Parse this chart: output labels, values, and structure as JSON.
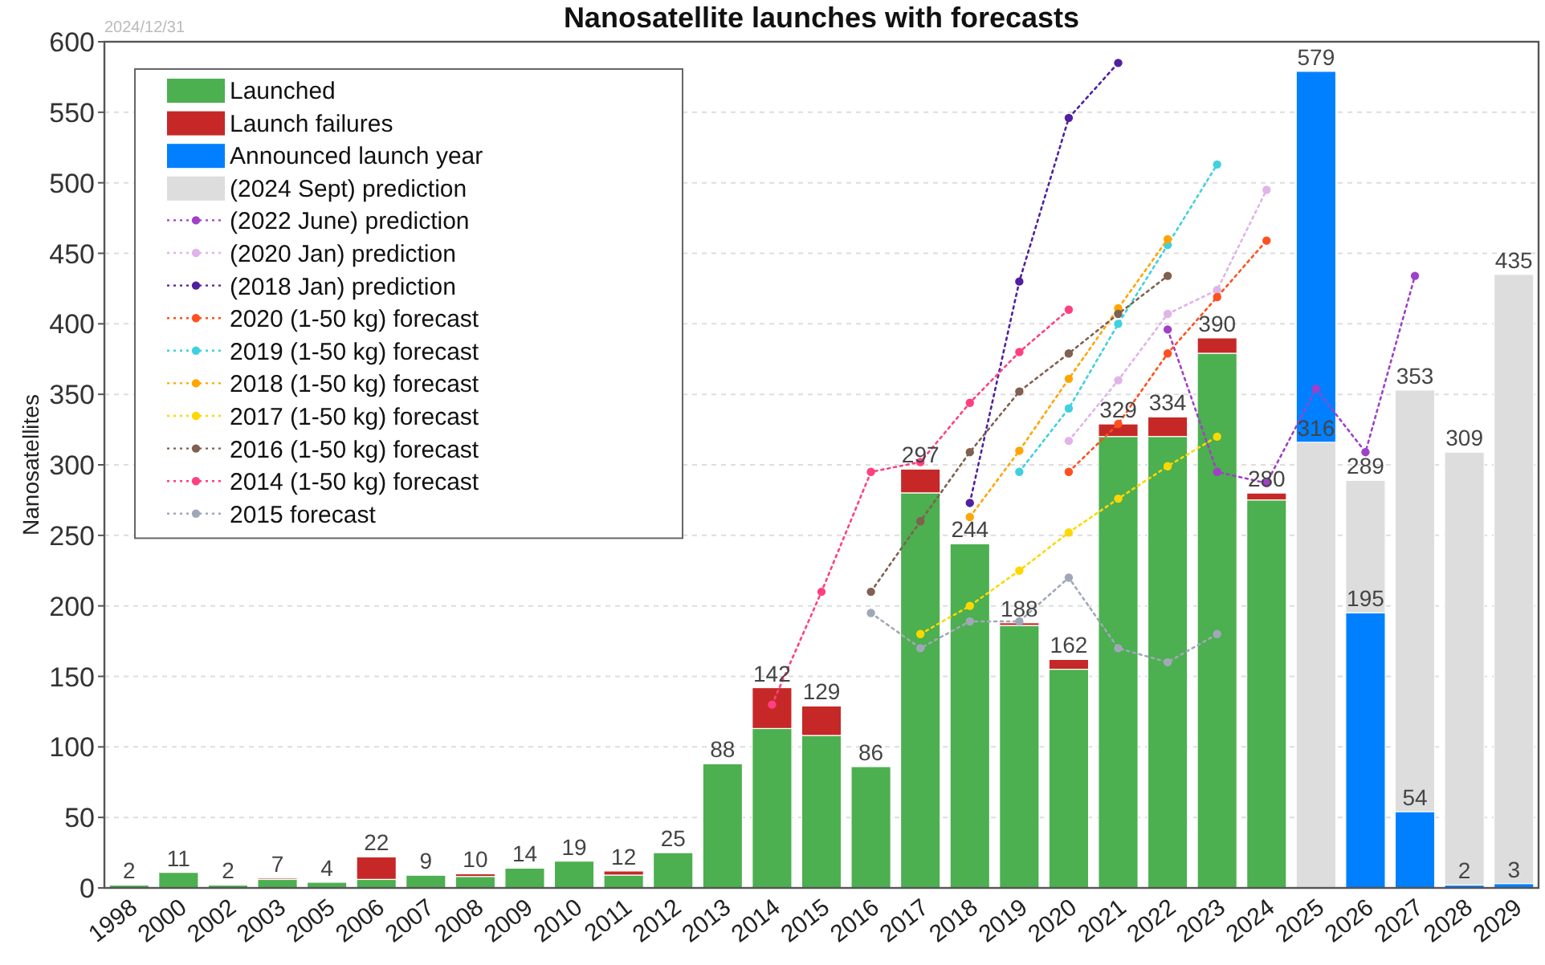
{
  "chart_data": {
    "type": "bar",
    "title": "Nanosatellite launches with forecasts",
    "ylabel": "Nanosatellites",
    "annotations": [
      "2024/12/31"
    ],
    "categories": [
      "1998",
      "2000",
      "2002",
      "2003",
      "2005",
      "2006",
      "2007",
      "2008",
      "2009",
      "2010",
      "2011",
      "2012",
      "2013",
      "2014",
      "2015",
      "2016",
      "2017",
      "2018",
      "2019",
      "2020",
      "2021",
      "2022",
      "2023",
      "2024",
      "2025",
      "2026",
      "2027",
      "2028",
      "2029"
    ],
    "ylim": [
      0,
      600
    ],
    "yticks": [
      0,
      50,
      100,
      150,
      200,
      250,
      300,
      350,
      400,
      450,
      500,
      550,
      600
    ],
    "grid": "y",
    "legend": "top left",
    "totals": [
      "2",
      "11",
      "2",
      "7",
      "4",
      "22",
      "9",
      "10",
      "14",
      "19",
      "12",
      "25",
      "88",
      "142",
      "129",
      "86",
      "297",
      "244",
      "188",
      "162",
      "329",
      "334",
      "390",
      "280",
      null,
      null,
      null,
      null,
      null
    ],
    "series": [
      {
        "name": "Launched",
        "color": "#4caf50",
        "values": [
          2,
          11,
          2,
          6,
          4,
          6,
          9,
          8,
          14,
          19,
          9,
          25,
          88,
          113,
          108,
          86,
          280,
          244,
          186,
          155,
          320,
          320,
          379,
          275,
          null,
          null,
          null,
          null,
          null
        ]
      },
      {
        "name": "Launch failures",
        "color": "#c62828",
        "base": [
          null,
          null,
          null,
          6,
          null,
          6,
          null,
          8,
          null,
          null,
          9,
          null,
          null,
          113,
          108,
          null,
          280,
          null,
          186,
          155,
          320,
          320,
          379,
          275,
          null,
          null,
          null,
          null,
          null
        ],
        "values": [
          null,
          null,
          null,
          1,
          null,
          16,
          null,
          2,
          null,
          null,
          3,
          null,
          null,
          29,
          21,
          null,
          17,
          null,
          2,
          7,
          9,
          14,
          11,
          5,
          null,
          null,
          null,
          null,
          null
        ]
      },
      {
        "name": "Announced launch year",
        "color": "#0080ff",
        "values": [
          null,
          null,
          null,
          null,
          null,
          null,
          null,
          null,
          null,
          null,
          null,
          null,
          null,
          null,
          null,
          null,
          null,
          null,
          null,
          null,
          null,
          null,
          null,
          null,
          579,
          195,
          54,
          2,
          3
        ],
        "value_labels": [
          null,
          null,
          null,
          null,
          null,
          null,
          null,
          null,
          null,
          null,
          null,
          null,
          null,
          null,
          null,
          null,
          null,
          null,
          null,
          null,
          null,
          null,
          null,
          null,
          "579",
          "195",
          "54",
          "2",
          "3"
        ]
      },
      {
        "name": "(2024 Sept) prediction",
        "color": "#dddddd",
        "values": [
          null,
          null,
          null,
          null,
          null,
          null,
          null,
          null,
          null,
          null,
          null,
          null,
          null,
          null,
          null,
          null,
          null,
          null,
          null,
          null,
          null,
          null,
          null,
          null,
          316,
          289,
          353,
          309,
          435
        ],
        "value_labels": [
          null,
          null,
          null,
          null,
          null,
          null,
          null,
          null,
          null,
          null,
          null,
          null,
          null,
          null,
          null,
          null,
          null,
          null,
          null,
          null,
          null,
          null,
          null,
          null,
          "316",
          "289",
          "353",
          "309",
          "435"
        ]
      },
      {
        "name": "(2022 June) prediction",
        "type": "line",
        "marker": "circle",
        "line_style": "dotted",
        "color": "#a040c8",
        "values": [
          null,
          null,
          null,
          null,
          null,
          null,
          null,
          null,
          null,
          null,
          null,
          null,
          null,
          null,
          null,
          null,
          null,
          null,
          null,
          null,
          null,
          396,
          295,
          287,
          354,
          309,
          434,
          null,
          null
        ]
      },
      {
        "name": "(2020 Jan) prediction",
        "type": "line",
        "marker": "circle",
        "line_style": "dotted",
        "color": "#e0b4e8",
        "values": [
          null,
          null,
          null,
          null,
          null,
          null,
          null,
          null,
          null,
          null,
          null,
          null,
          null,
          null,
          null,
          null,
          null,
          null,
          null,
          317,
          360,
          407,
          424,
          495,
          null,
          null,
          null,
          null,
          null
        ]
      },
      {
        "name": "(2018 Jan) prediction",
        "type": "line",
        "marker": "circle",
        "line_style": "dotted",
        "color": "#5020a0",
        "values": [
          null,
          null,
          null,
          null,
          null,
          null,
          null,
          null,
          null,
          null,
          null,
          null,
          null,
          null,
          null,
          null,
          null,
          273,
          430,
          546,
          585,
          null,
          null,
          null,
          null,
          null,
          null,
          null,
          null
        ]
      },
      {
        "name": "2020 (1-50 kg) forecast",
        "type": "line",
        "marker": "circle",
        "line_style": "dotted",
        "color": "#ff5020",
        "values": [
          null,
          null,
          null,
          null,
          null,
          null,
          null,
          null,
          null,
          null,
          null,
          null,
          null,
          null,
          null,
          null,
          null,
          null,
          null,
          295,
          329,
          379,
          419,
          459,
          null,
          null,
          null,
          null,
          null
        ]
      },
      {
        "name": "2019 (1-50 kg) forecast",
        "type": "line",
        "marker": "circle",
        "line_style": "dotted",
        "color": "#40d0e0",
        "values": [
          null,
          null,
          null,
          null,
          null,
          null,
          null,
          null,
          null,
          null,
          null,
          null,
          null,
          null,
          null,
          null,
          null,
          null,
          295,
          340,
          400,
          456,
          513,
          null,
          null,
          null,
          null,
          null,
          null
        ]
      },
      {
        "name": "2018 (1-50 kg) forecast",
        "type": "line",
        "marker": "circle",
        "line_style": "dotted",
        "color": "#ffa500",
        "values": [
          null,
          null,
          null,
          null,
          null,
          null,
          null,
          null,
          null,
          null,
          null,
          null,
          null,
          null,
          null,
          null,
          null,
          263,
          310,
          361,
          411,
          460,
          null,
          null,
          null,
          null,
          null,
          null,
          null
        ]
      },
      {
        "name": "2017 (1-50 kg) forecast",
        "type": "line",
        "marker": "circle",
        "line_style": "dotted",
        "color": "#ffd700",
        "values": [
          null,
          null,
          null,
          null,
          null,
          null,
          null,
          null,
          null,
          null,
          null,
          null,
          null,
          null,
          null,
          null,
          180,
          200,
          225,
          252,
          276,
          299,
          320,
          null,
          null,
          null,
          null,
          null,
          null
        ]
      },
      {
        "name": "2016 (1-50 kg) forecast",
        "type": "line",
        "marker": "circle",
        "line_style": "dotted",
        "color": "#806050",
        "values": [
          null,
          null,
          null,
          null,
          null,
          null,
          null,
          null,
          null,
          null,
          null,
          null,
          null,
          null,
          null,
          210,
          260,
          309,
          352,
          379,
          407,
          434,
          null,
          null,
          null,
          null,
          null,
          null,
          null
        ]
      },
      {
        "name": "2014 (1-50 kg) forecast",
        "type": "line",
        "marker": "circle",
        "line_style": "dotted",
        "color": "#ff4080",
        "values": [
          null,
          null,
          null,
          null,
          null,
          null,
          null,
          null,
          null,
          null,
          null,
          null,
          null,
          130,
          210,
          295,
          302,
          344,
          380,
          410,
          null,
          null,
          null,
          null,
          null,
          null,
          null,
          null,
          null
        ]
      },
      {
        "name": "2015 forecast",
        "type": "line",
        "marker": "circle",
        "line_style": "dotted",
        "color": "#a0a8b8",
        "values": [
          null,
          null,
          null,
          null,
          null,
          null,
          null,
          null,
          null,
          null,
          null,
          null,
          null,
          null,
          null,
          195,
          170,
          189,
          189,
          220,
          170,
          160,
          180,
          null,
          null,
          null,
          null,
          null,
          null
        ]
      }
    ]
  }
}
